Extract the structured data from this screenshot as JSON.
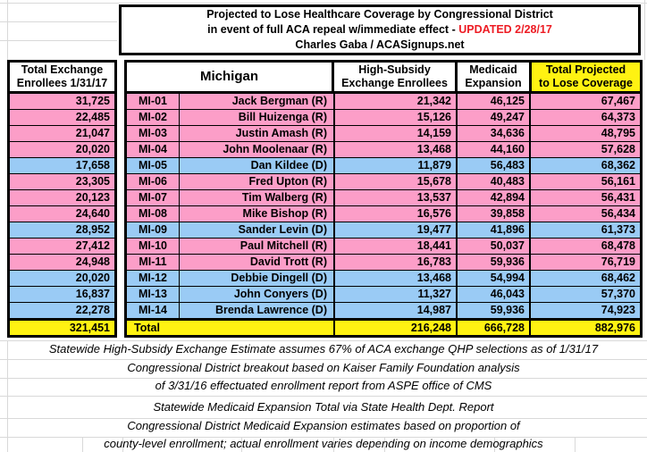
{
  "title": {
    "line1": "Projected to Lose Healthcare Coverage by Congressional District",
    "line2_prefix": "in event of full ACA repeal w/immediate effect - ",
    "line2_updated": "UPDATED 2/28/17",
    "line3": "Charles Gaba / ACASignups.net"
  },
  "left_column": {
    "header_line1": "Total Exchange",
    "header_line2": "Enrollees 1/31/17",
    "total": "321,451"
  },
  "table": {
    "state_header": "Michigan",
    "col_highsubsidy_line1": "High-Subsidy",
    "col_highsubsidy_line2": "Exchange Enrollees",
    "col_medicaid_line1": "Medicaid",
    "col_medicaid_line2": "Expansion",
    "col_total_line1": "Total Projected",
    "col_total_line2": "to Lose Coverage",
    "rows": [
      {
        "enrollees": "31,725",
        "district": "MI-01",
        "rep": "Jack Bergman (R)",
        "party": "R",
        "high_subsidy": "21,342",
        "medicaid": "46,125",
        "total": "67,467"
      },
      {
        "enrollees": "22,485",
        "district": "MI-02",
        "rep": "Bill Huizenga (R)",
        "party": "R",
        "high_subsidy": "15,126",
        "medicaid": "49,247",
        "total": "64,373"
      },
      {
        "enrollees": "21,047",
        "district": "MI-03",
        "rep": "Justin Amash (R)",
        "party": "R",
        "high_subsidy": "14,159",
        "medicaid": "34,636",
        "total": "48,795"
      },
      {
        "enrollees": "20,020",
        "district": "MI-04",
        "rep": "John Moolenaar (R)",
        "party": "R",
        "high_subsidy": "13,468",
        "medicaid": "44,160",
        "total": "57,628"
      },
      {
        "enrollees": "17,658",
        "district": "MI-05",
        "rep": "Dan Kildee (D)",
        "party": "D",
        "high_subsidy": "11,879",
        "medicaid": "56,483",
        "total": "68,362"
      },
      {
        "enrollees": "23,305",
        "district": "MI-06",
        "rep": "Fred Upton (R)",
        "party": "R",
        "high_subsidy": "15,678",
        "medicaid": "40,483",
        "total": "56,161"
      },
      {
        "enrollees": "20,123",
        "district": "MI-07",
        "rep": "Tim Walberg (R)",
        "party": "R",
        "high_subsidy": "13,537",
        "medicaid": "42,894",
        "total": "56,431"
      },
      {
        "enrollees": "24,640",
        "district": "MI-08",
        "rep": "Mike Bishop (R)",
        "party": "R",
        "high_subsidy": "16,576",
        "medicaid": "39,858",
        "total": "56,434"
      },
      {
        "enrollees": "28,952",
        "district": "MI-09",
        "rep": "Sander Levin (D)",
        "party": "D",
        "high_subsidy": "19,477",
        "medicaid": "41,896",
        "total": "61,373"
      },
      {
        "enrollees": "27,412",
        "district": "MI-10",
        "rep": "Paul Mitchell (R)",
        "party": "R",
        "high_subsidy": "18,441",
        "medicaid": "50,037",
        "total": "68,478"
      },
      {
        "enrollees": "24,948",
        "district": "MI-11",
        "rep": "David Trott (R)",
        "party": "R",
        "high_subsidy": "16,783",
        "medicaid": "59,936",
        "total": "76,719"
      },
      {
        "enrollees": "20,020",
        "district": "MI-12",
        "rep": "Debbie Dingell (D)",
        "party": "D",
        "high_subsidy": "13,468",
        "medicaid": "54,994",
        "total": "68,462"
      },
      {
        "enrollees": "16,837",
        "district": "MI-13",
        "rep": "John Conyers (D)",
        "party": "D",
        "high_subsidy": "11,327",
        "medicaid": "46,043",
        "total": "57,370"
      },
      {
        "enrollees": "22,278",
        "district": "MI-14",
        "rep": "Brenda Lawrence (D)",
        "party": "D",
        "high_subsidy": "14,987",
        "medicaid": "59,936",
        "total": "74,923"
      }
    ],
    "total_label": "Total",
    "totals": {
      "high_subsidy": "216,248",
      "medicaid": "666,728",
      "lose_coverage": "882,976"
    }
  },
  "footnotes": {
    "block1": [
      "Statewide High-Subsidy Exchange Estimate assumes 67% of ACA exchange QHP selections as of 1/31/17",
      "Congressional District breakout based on Kaiser Family Foundation analysis",
      "of 3/31/16 effectuated enrollment report from ASPE office of CMS"
    ],
    "block2": [
      "Statewide Medicaid Expansion Total via State Health Dept. Report",
      "Congressional District Medicaid Expansion estimates based on proportion of",
      "county-level enrollment; actual enrollment varies depending on income demographics"
    ]
  },
  "colors": {
    "pink": "#FC9EC8",
    "blue": "#9ACBF5",
    "yellow": "#FFF212",
    "red": "#ED1C24"
  }
}
